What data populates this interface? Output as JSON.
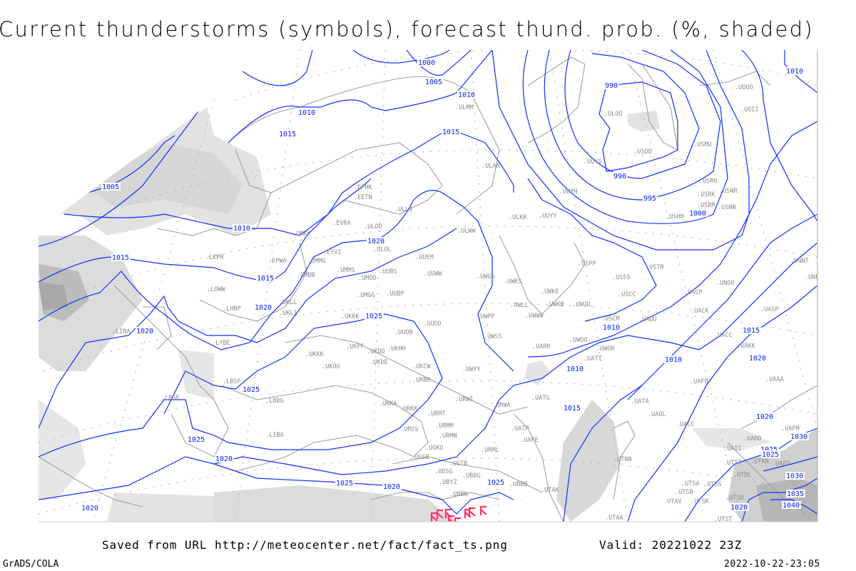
{
  "title": "Current thunderstorms (symbols), forecast thund. prob. (%, shaded)",
  "footer": {
    "saved_from": "Saved from URL http://meteocenter.net/fact/fact_ts.png",
    "valid": "Valid: 20221022 23Z",
    "software": "GrADS/COLA",
    "timestamp": "2022-10-22-23:05"
  },
  "colors": {
    "isobar": "#1030ff",
    "coastline": "#a0a0a0",
    "station_label": "#8a8a8a",
    "thunderstorm_symbol": "#ff3366",
    "probability_shading": [
      "#e4e4e4",
      "#d2d2d2",
      "#bdbdbd",
      "#a8a8a8"
    ]
  },
  "thunderstorm_symbol_icon": "thunderstorm-icon",
  "isobar_labels": [
    "1000",
    "1005",
    "1010",
    "1010",
    "1015",
    "1015",
    "990",
    "990",
    "995",
    "1000",
    "1010",
    "1005",
    "1010",
    "1015",
    "1015",
    "1020",
    "1020",
    "1020",
    "1025",
    "1010",
    "1010",
    "1010",
    "1015",
    "1015",
    "1020",
    "1025",
    "1025",
    "1025",
    "1020",
    "1025",
    "1020",
    "1025",
    "1020",
    "1030",
    "1025",
    "1030",
    "1035",
    "1040",
    "1020",
    "1020"
  ],
  "stations": [
    "ULOO",
    "USDD",
    "UUYS",
    "USMU",
    "USRO",
    "USRK",
    "USNR",
    "USRR",
    "USNN",
    "USHH",
    "UUYH",
    "UUYY",
    "ULKK",
    "UOOO",
    "UOII",
    "ULMM",
    "ULAA",
    "EFHK",
    "EETN",
    "ULLI",
    "EVRA",
    "ULOO",
    "UMKK",
    "ULOL",
    "EYVI",
    "UMMG",
    "EPWA",
    "UMBB",
    "UMMS",
    "UMOO",
    "UUBS",
    "UUEM",
    "UUWW",
    "ULWW",
    "UWGG",
    "UWKS",
    "UMGG",
    "UUBP",
    "UWKE",
    "UWLL",
    "UWKB",
    "UWUU",
    "UWWW",
    "UWPP",
    "UUOO",
    "UUOB",
    "UKKK",
    "UKLL",
    "UKLI",
    "LOWW",
    "LHBP",
    "LKPR",
    "LIRA",
    "LYBE",
    "UKKK",
    "UKOO",
    "UKHH",
    "UKDD",
    "UKDE",
    "UKFF",
    "UKCW",
    "URRR",
    "UWYY",
    "UWSS",
    "UARR",
    "UWOO",
    "UWOR",
    "UATT",
    "USCM",
    "UAUU",
    "USSS",
    "USCC",
    "USTR",
    "UACP",
    "UNOO",
    "UACK",
    "UASP",
    "UNNT",
    "UNBB",
    "UACC",
    "UAKK",
    "UAFO",
    "UATA",
    "UAOL",
    "UACC",
    "UATG",
    "URWA",
    "URWI",
    "URKA",
    "URKK",
    "URMT",
    "URMM",
    "URMN",
    "URSS",
    "UGKO",
    "UGSB",
    "UGTB",
    "UDSG",
    "UBBG",
    "UBYZ",
    "UBBN",
    "UBBB",
    "UATP",
    "UAFE",
    "URML",
    "UTAK",
    "LBSF",
    "LBBG",
    "UTNN",
    "UTSA",
    "UTSS",
    "UTSB",
    "UTAV",
    "UTSK",
    "UTSD",
    "UTST",
    "UTAA",
    "UAII",
    "UTTT",
    "UTKN",
    "UAFO",
    "UTDL",
    "UADD",
    "UAFM",
    "UAAA",
    "USPP",
    "LIBA",
    "LBSF"
  ]
}
